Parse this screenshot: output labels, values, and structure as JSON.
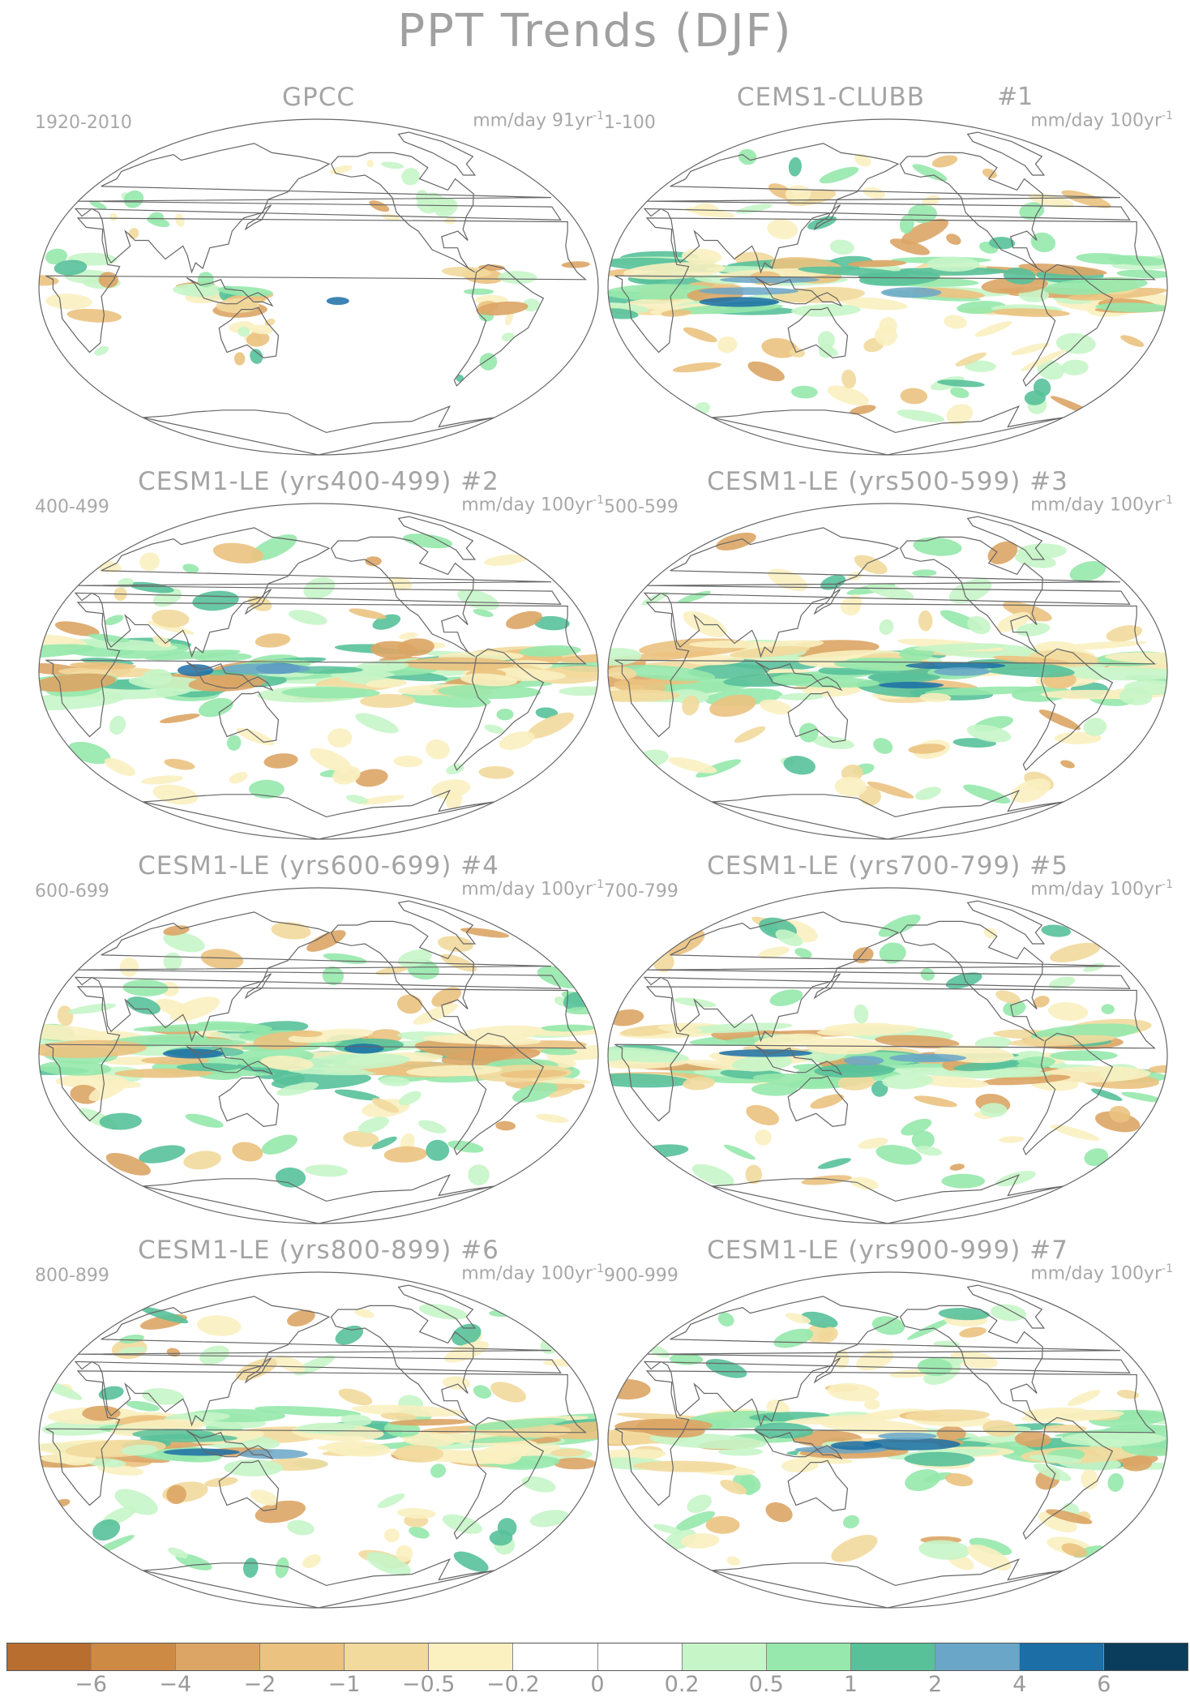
{
  "title": "PPT Trends (DJF)",
  "panels": [
    {
      "title": "GPCC",
      "run": "",
      "period": "1920-2010",
      "units": "mm/day 91yr",
      "units_sup": "-1",
      "seed": 3,
      "density": 0.45
    },
    {
      "title": "CEMS1-CLUBB",
      "run": "#1",
      "period": "1-100",
      "units": "mm/day 100yr",
      "units_sup": "-1",
      "seed": 11,
      "density": 1.0
    },
    {
      "title": "CESM1-LE (yrs400-499) #2",
      "run": "",
      "period": "400-499",
      "units": "mm/day 100yr",
      "units_sup": "-1",
      "seed": 23,
      "density": 1.0
    },
    {
      "title": "CESM1-LE (yrs500-599) #3",
      "run": "",
      "period": "500-599",
      "units": "mm/day 100yr",
      "units_sup": "-1",
      "seed": 37,
      "density": 1.0
    },
    {
      "title": "CESM1-LE (yrs600-699) #4",
      "run": "",
      "period": "600-699",
      "units": "mm/day 100yr",
      "units_sup": "-1",
      "seed": 41,
      "density": 1.0
    },
    {
      "title": "CESM1-LE (yrs700-799) #5",
      "run": "",
      "period": "700-799",
      "units": "mm/day 100yr",
      "units_sup": "-1",
      "seed": 53,
      "density": 1.0
    },
    {
      "title": "CESM1-LE (yrs800-899) #6",
      "run": "",
      "period": "800-899",
      "units": "mm/day 100yr",
      "units_sup": "-1",
      "seed": 67,
      "density": 1.0
    },
    {
      "title": "CESM1-LE (yrs900-999) #7",
      "run": "",
      "period": "900-999",
      "units": "mm/day 100yr",
      "units_sup": "-1",
      "seed": 79,
      "density": 1.0
    }
  ],
  "colorbar": {
    "colors": [
      "#b86e2e",
      "#cd8a45",
      "#dca565",
      "#ebc27f",
      "#f2d99c",
      "#faf0c0",
      "#ffffff",
      "#ffffff",
      "#c6f5c8",
      "#96e8ac",
      "#58c19a",
      "#6aa6c8",
      "#1b6fa6",
      "#0a3d5c"
    ],
    "ticks": [
      "-6",
      "-4",
      "-2",
      "-1",
      "-0.5",
      "-0.2",
      "0",
      "0.2",
      "0.5",
      "1",
      "2",
      "4",
      "6"
    ]
  }
}
